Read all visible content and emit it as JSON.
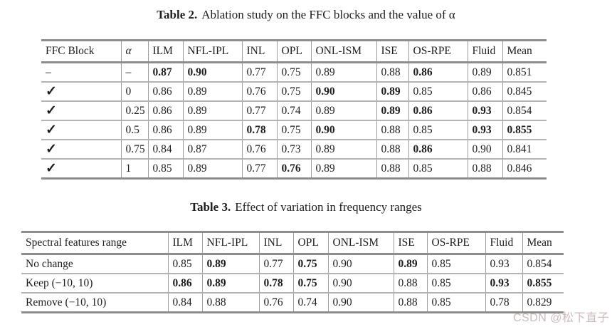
{
  "captions": [
    {
      "label": "Table 2.",
      "text": "Ablation study on the FFC blocks and the value of α"
    },
    {
      "label": "Table 3.",
      "text": "Effect of variation in frequency ranges"
    }
  ],
  "tables": [
    {
      "name": "ffc-ablation-table",
      "headers": [
        {
          "t": "FFC Block"
        },
        {
          "t": "α",
          "i": 1
        },
        {
          "t": "ILM"
        },
        {
          "t": "NFL-IPL"
        },
        {
          "t": "INL"
        },
        {
          "t": "OPL"
        },
        {
          "t": "ONL-ISM"
        },
        {
          "t": "ISE"
        },
        {
          "t": "OS-RPE"
        },
        {
          "t": "Fluid"
        },
        {
          "t": "Mean"
        }
      ],
      "rows": [
        [
          {
            "t": "–"
          },
          {
            "t": "–"
          },
          {
            "t": "0.87",
            "b": 1
          },
          {
            "t": "0.90",
            "b": 1
          },
          {
            "t": "0.77"
          },
          {
            "t": "0.75"
          },
          {
            "t": "0.89"
          },
          {
            "t": "0.88"
          },
          {
            "t": "0.86",
            "b": 1
          },
          {
            "t": "0.89"
          },
          {
            "t": "0.851"
          }
        ],
        [
          {
            "t": "✓",
            "check": 1
          },
          {
            "t": "0"
          },
          {
            "t": "0.86"
          },
          {
            "t": "0.89"
          },
          {
            "t": "0.76"
          },
          {
            "t": "0.75"
          },
          {
            "t": "0.90",
            "b": 1
          },
          {
            "t": "0.89",
            "b": 1
          },
          {
            "t": "0.85"
          },
          {
            "t": "0.86"
          },
          {
            "t": "0.845"
          }
        ],
        [
          {
            "t": "✓",
            "check": 1
          },
          {
            "t": "0.25"
          },
          {
            "t": "0.86"
          },
          {
            "t": "0.89"
          },
          {
            "t": "0.77"
          },
          {
            "t": "0.74"
          },
          {
            "t": "0.89"
          },
          {
            "t": "0.89",
            "b": 1
          },
          {
            "t": "0.86",
            "b": 1
          },
          {
            "t": "0.93",
            "b": 1
          },
          {
            "t": "0.854"
          }
        ],
        [
          {
            "t": "✓",
            "check": 1
          },
          {
            "t": "0.5"
          },
          {
            "t": "0.86"
          },
          {
            "t": "0.89"
          },
          {
            "t": "0.78",
            "b": 1
          },
          {
            "t": "0.75"
          },
          {
            "t": "0.90",
            "b": 1
          },
          {
            "t": "0.88"
          },
          {
            "t": "0.85"
          },
          {
            "t": "0.93",
            "b": 1
          },
          {
            "t": "0.855",
            "b": 1
          }
        ],
        [
          {
            "t": "✓",
            "check": 1
          },
          {
            "t": "0.75"
          },
          {
            "t": "0.84"
          },
          {
            "t": "0.87"
          },
          {
            "t": "0.76"
          },
          {
            "t": "0.73"
          },
          {
            "t": "0.89"
          },
          {
            "t": "0.88"
          },
          {
            "t": "0.86",
            "b": 1
          },
          {
            "t": "0.90"
          },
          {
            "t": "0.841"
          }
        ],
        [
          {
            "t": "✓",
            "check": 1
          },
          {
            "t": "1"
          },
          {
            "t": "0.85"
          },
          {
            "t": "0.89"
          },
          {
            "t": "0.77"
          },
          {
            "t": "0.76",
            "b": 1
          },
          {
            "t": "0.89"
          },
          {
            "t": "0.88"
          },
          {
            "t": "0.85"
          },
          {
            "t": "0.88"
          },
          {
            "t": "0.846"
          }
        ]
      ]
    },
    {
      "name": "frequency-range-table",
      "headers": [
        {
          "t": "Spectral features range"
        },
        {
          "t": "ILM"
        },
        {
          "t": "NFL-IPL"
        },
        {
          "t": "INL"
        },
        {
          "t": "OPL"
        },
        {
          "t": "ONL-ISM"
        },
        {
          "t": "ISE"
        },
        {
          "t": "OS-RPE"
        },
        {
          "t": "Fluid"
        },
        {
          "t": "Mean"
        }
      ],
      "rows": [
        [
          {
            "t": "No change"
          },
          {
            "t": "0.85"
          },
          {
            "t": "0.89",
            "b": 1
          },
          {
            "t": "0.77"
          },
          {
            "t": "0.75",
            "b": 1
          },
          {
            "t": "0.90"
          },
          {
            "t": "0.89",
            "b": 1
          },
          {
            "t": "0.85"
          },
          {
            "t": "0.93"
          },
          {
            "t": "0.854"
          }
        ],
        [
          {
            "t": "Keep (−10, 10)"
          },
          {
            "t": "0.86",
            "b": 1
          },
          {
            "t": "0.89",
            "b": 1
          },
          {
            "t": "0.78",
            "b": 1
          },
          {
            "t": "0.75",
            "b": 1
          },
          {
            "t": "0.90"
          },
          {
            "t": "0.88"
          },
          {
            "t": "0.85"
          },
          {
            "t": "0.93",
            "b": 1
          },
          {
            "t": "0.855",
            "b": 1
          }
        ],
        [
          {
            "t": "Remove (−10, 10)"
          },
          {
            "t": "0.84"
          },
          {
            "t": "0.88"
          },
          {
            "t": "0.76"
          },
          {
            "t": "0.74"
          },
          {
            "t": "0.90"
          },
          {
            "t": "0.88"
          },
          {
            "t": "0.85"
          },
          {
            "t": "0.78"
          },
          {
            "t": "0.829"
          }
        ]
      ]
    }
  ],
  "watermark": {
    "text": "CSDN @松下直子",
    "color": "#cdbbbb"
  }
}
